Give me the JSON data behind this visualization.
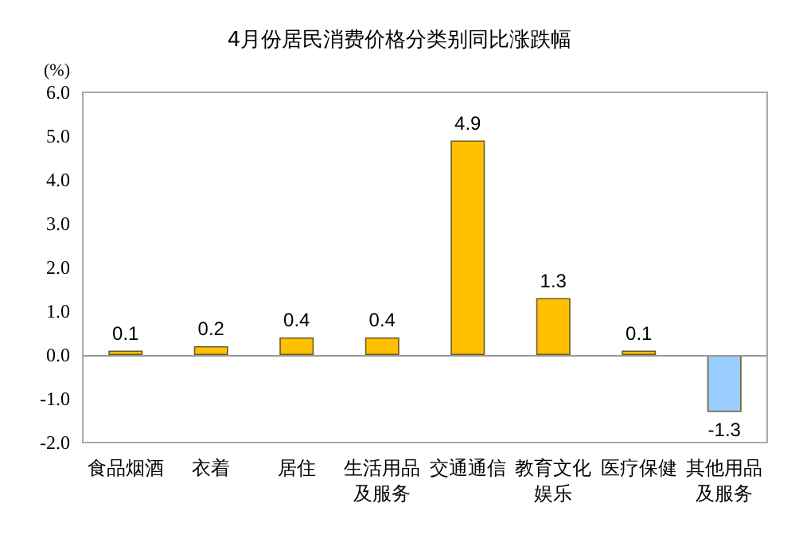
{
  "chart_data": {
    "type": "bar",
    "title": "4月份居民消费价格分类别同比涨跌幅",
    "ylabel": "(%)",
    "categories": [
      "食品烟酒",
      "衣着",
      "居住",
      "生活用品及服务",
      "交通通信",
      "教育文化娱乐",
      "医疗保健",
      "其他用品及服务"
    ],
    "values": [
      0.1,
      0.2,
      0.4,
      0.4,
      4.9,
      1.3,
      0.1,
      -1.3
    ],
    "colors": [
      "#ffc000",
      "#ffc000",
      "#ffc000",
      "#ffc000",
      "#ffc000",
      "#ffc000",
      "#ffc000",
      "#99ccff"
    ],
    "ylim": [
      -2,
      6
    ],
    "yticks": [
      {
        "value": -2,
        "label": "-2.0"
      },
      {
        "value": -1,
        "label": "-1.0"
      },
      {
        "value": 0,
        "label": "0.0"
      },
      {
        "value": 1,
        "label": "1.0"
      },
      {
        "value": 2,
        "label": "2.0"
      },
      {
        "value": 3,
        "label": "3.0"
      },
      {
        "value": 4,
        "label": "4.0"
      },
      {
        "value": 5,
        "label": "5.0"
      },
      {
        "value": 6,
        "label": "6.0"
      }
    ],
    "ref_lines": [
      {
        "axis": "y",
        "value": 0,
        "color": "#999999"
      }
    ],
    "grid": false,
    "data_labels": true
  }
}
